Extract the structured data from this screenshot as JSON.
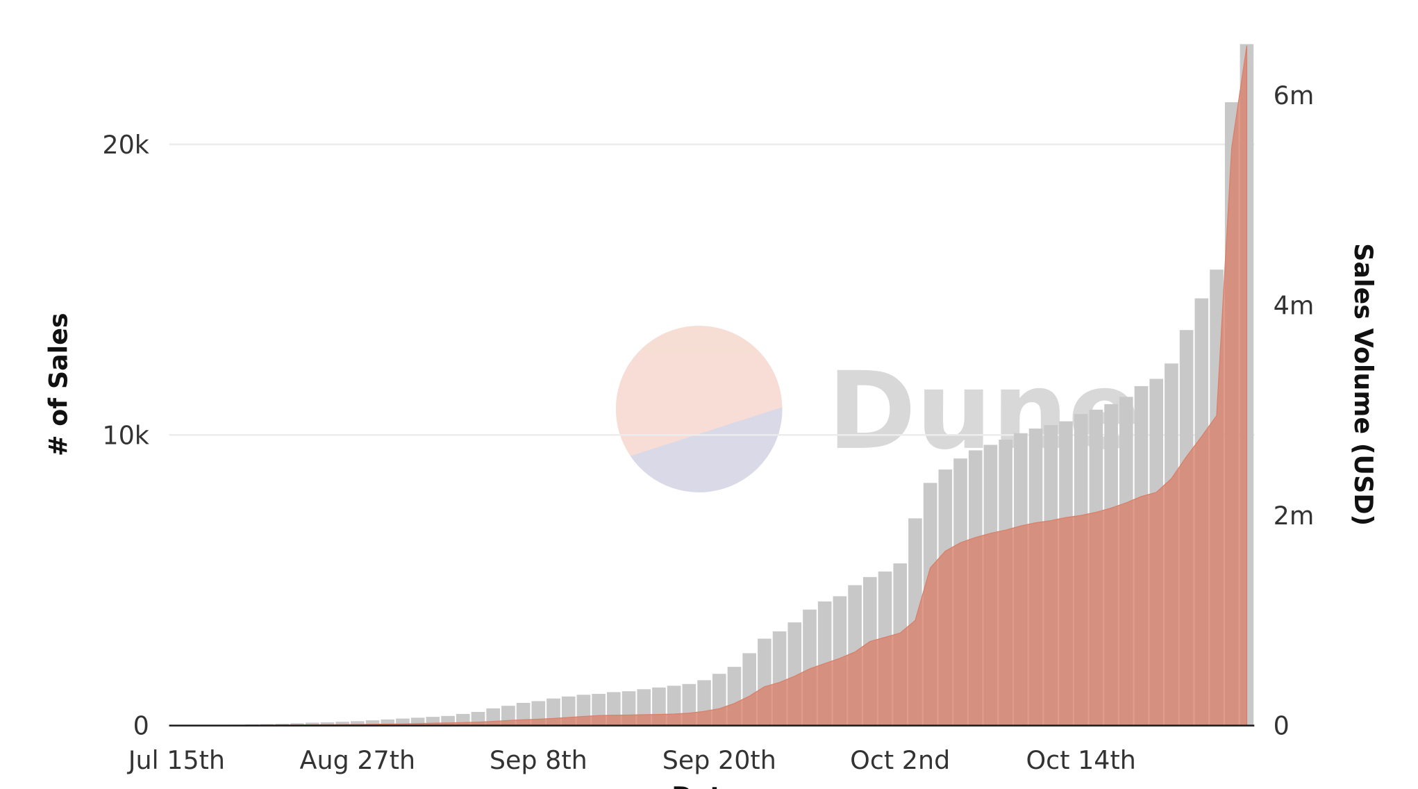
{
  "chart_data": {
    "type": "bar_area",
    "watermark": "Dune",
    "x_label": "Date",
    "y_label": "# of Sales",
    "y2_label": "Sales Volume (USD)",
    "categories": [
      "Jul 15th",
      null,
      null,
      null,
      null,
      null,
      null,
      null,
      null,
      null,
      null,
      null,
      "Aug 27th",
      null,
      null,
      null,
      null,
      null,
      null,
      null,
      null,
      null,
      null,
      null,
      "Sep 8th",
      null,
      null,
      null,
      null,
      null,
      null,
      null,
      null,
      null,
      null,
      null,
      "Sep 20th",
      null,
      null,
      null,
      null,
      null,
      null,
      null,
      null,
      null,
      null,
      null,
      "Oct 2nd",
      null,
      null,
      null,
      null,
      null,
      null,
      null,
      null,
      null,
      null,
      null,
      "Oct 14th",
      null,
      null,
      null,
      null,
      null,
      null,
      null,
      null,
      null,
      null,
      null
    ],
    "series": [
      {
        "name": "# of Sales",
        "type": "bar",
        "color": "#c8c8c8",
        "axis": "y",
        "values": [
          5,
          5,
          5,
          5,
          30,
          40,
          50,
          60,
          80,
          100,
          110,
          130,
          150,
          180,
          210,
          240,
          270,
          300,
          330,
          400,
          470,
          590,
          680,
          780,
          840,
          930,
          1000,
          1060,
          1090,
          1150,
          1180,
          1250,
          1310,
          1370,
          1430,
          1560,
          1780,
          2020,
          2490,
          2990,
          3240,
          3550,
          3990,
          4270,
          4450,
          4830,
          5110,
          5300,
          5580,
          7130,
          8350,
          8810,
          9190,
          9470,
          9660,
          9840,
          10060,
          10220,
          10340,
          10470,
          10720,
          10870,
          11060,
          11310,
          11680,
          11930,
          12460,
          13610,
          14700,
          15690,
          21450,
          23450
        ]
      },
      {
        "name": "Sales Volume (USD)",
        "type": "area",
        "color": "#d9806a",
        "axis": "y2",
        "values": [
          0,
          0,
          0,
          0,
          2000,
          3000,
          4000,
          5000,
          6000,
          7000,
          8000,
          9000,
          10000,
          12000,
          14000,
          16000,
          19000,
          22000,
          25000,
          28000,
          32000,
          40000,
          48000,
          55000,
          60000,
          68000,
          77000,
          87000,
          95000,
          98000,
          100000,
          103000,
          106000,
          110000,
          118000,
          135000,
          160000,
          210000,
          280000,
          370000,
          410000,
          470000,
          540000,
          590000,
          640000,
          700000,
          800000,
          840000,
          880000,
          1000000,
          1500000,
          1660000,
          1740000,
          1790000,
          1830000,
          1860000,
          1900000,
          1930000,
          1950000,
          1980000,
          2000000,
          2030000,
          2070000,
          2120000,
          2180000,
          2220000,
          2350000,
          2560000,
          2750000,
          2950000,
          5500000,
          6470000
        ]
      }
    ],
    "ylim": [
      0,
      23500
    ],
    "yticks": [
      0,
      {
        "value": 10000,
        "label": "10k"
      },
      {
        "value": 20000,
        "label": "20k"
      }
    ],
    "y2lim": [
      0,
      6500000
    ],
    "y2ticks": [
      0,
      {
        "value": 2000000,
        "label": "2m"
      },
      {
        "value": 4000000,
        "label": "4m"
      },
      {
        "value": 6000000,
        "label": "6m"
      }
    ],
    "grid": true
  }
}
